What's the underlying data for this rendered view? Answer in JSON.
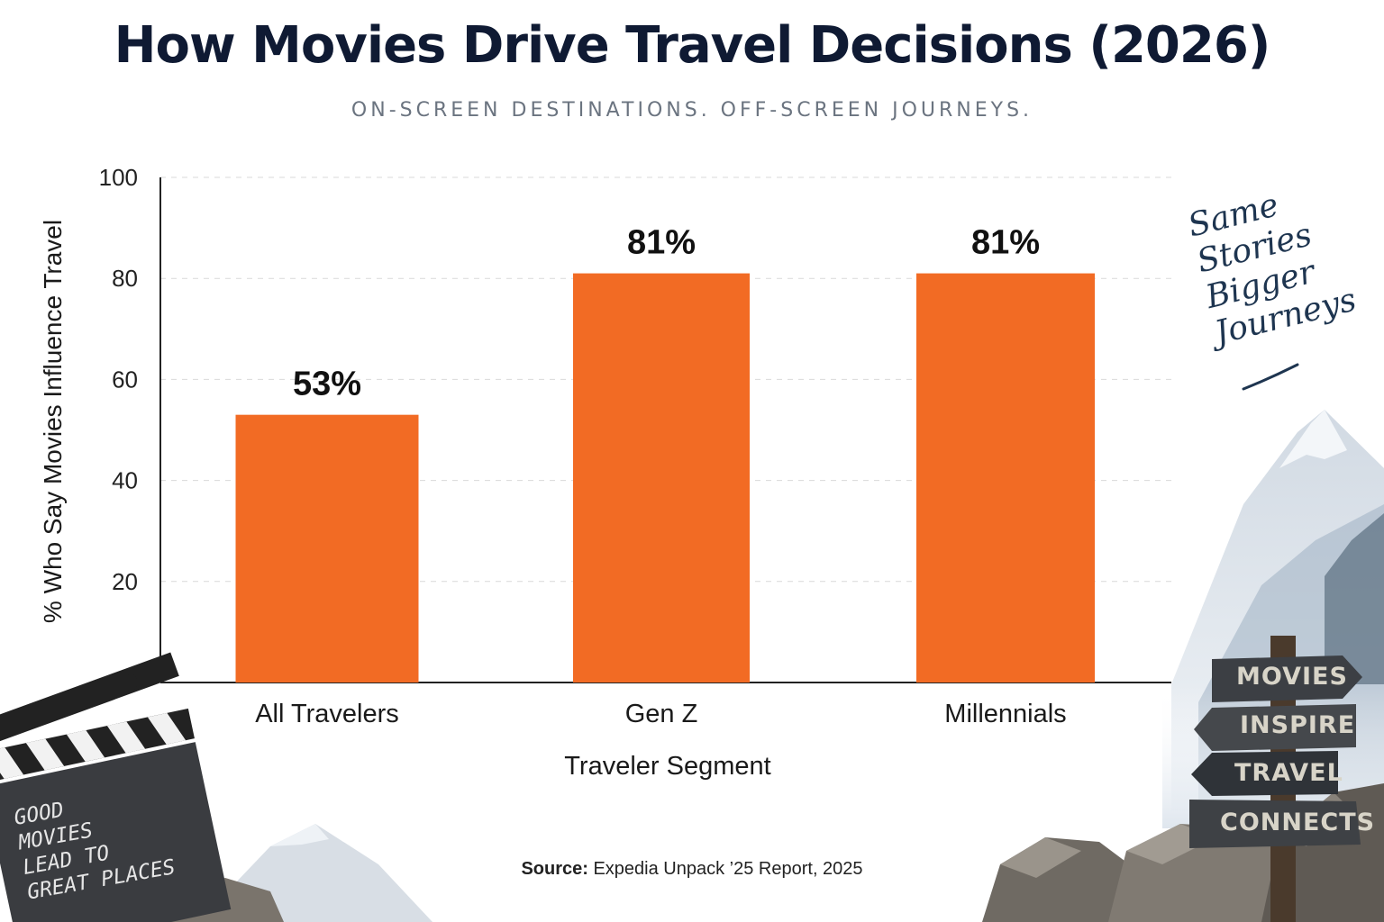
{
  "header": {
    "title": "How Movies Drive Travel Decisions (2026)",
    "subtitle": "ON-SCREEN DESTINATIONS. OFF-SCREEN JOURNEYS."
  },
  "chart_data": {
    "type": "bar",
    "categories": [
      "All Travelers",
      "Gen Z",
      "Millennials"
    ],
    "values": [
      53,
      81,
      81
    ],
    "data_labels": [
      "53%",
      "81%",
      "81%"
    ],
    "xlabel": "Traveler Segment",
    "ylabel": "% Who Say Movies Influence Travel",
    "ylim": [
      0,
      100
    ],
    "yticks": [
      0,
      20,
      40,
      60,
      80,
      100
    ],
    "grid": "horizontal dashed",
    "bar_color": "#f26b24"
  },
  "source": {
    "label": "Source:",
    "text": "Expedia Unpack ’25 Report, 2025"
  },
  "decor": {
    "script_lines": [
      "Same",
      "Stories",
      "Bigger",
      "Journeys"
    ],
    "clapperboard_lines": [
      "GOOD",
      "MOVIES",
      "LEAD TO",
      "GREAT PLACES"
    ],
    "signpost_lines": [
      "MOVIES",
      "INSPIRE",
      "TRAVEL",
      "CONNECTS"
    ]
  },
  "colors": {
    "title": "#0f1a33",
    "bar": "#f26b24",
    "axis": "#222222",
    "grid": "#d9d9d9"
  }
}
